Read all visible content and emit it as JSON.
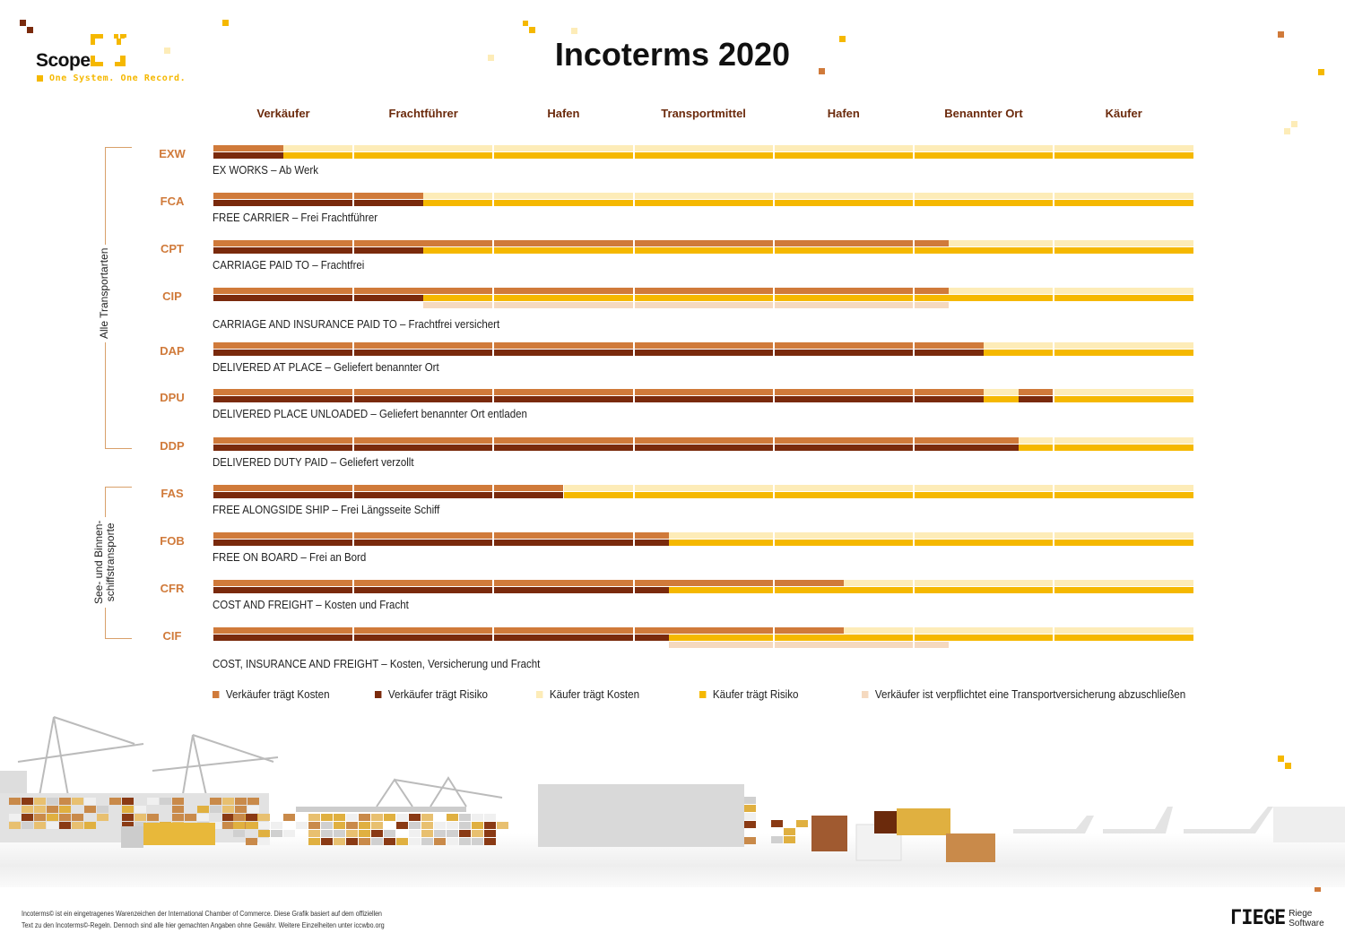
{
  "brand": {
    "name": "Scope",
    "tagline": "One System. One Record."
  },
  "title": "Incoterms 2020",
  "columns": [
    "Verkäufer",
    "Frachtführer",
    "Hafen",
    "Transportmittel",
    "Hafen",
    "Benannter Ort",
    "Käufer"
  ],
  "groups": [
    {
      "label": "Alle Transportarten"
    },
    {
      "label": "See- und Binnen-\nschiffstransporte"
    }
  ],
  "colors": {
    "seller_cost": "#d07a3a",
    "seller_risk": "#7a2a0c",
    "buyer_cost": "#fdecb8",
    "buyer_risk": "#f5b800",
    "insurance": "#f5d9bf"
  },
  "rows": [
    {
      "code": "EXW",
      "label": "EX WORKS – Ab Werk",
      "seller_cost_until": 0.5,
      "seller_risk_until": 0.5
    },
    {
      "code": "FCA",
      "label": "FREE CARRIER – Frei Frachtführer",
      "seller_cost_until": 1.5,
      "seller_risk_until": 1.5
    },
    {
      "code": "CPT",
      "label": "CARRIAGE PAID TO – Frachtfrei",
      "seller_cost_until": 5.25,
      "seller_risk_until": 1.5
    },
    {
      "code": "CIP",
      "label": "CARRIAGE AND INSURANCE PAID TO – Frachtfrei versichert",
      "seller_cost_until": 5.25,
      "seller_risk_until": 1.5,
      "insurance": [
        1.5,
        5.25
      ]
    },
    {
      "code": "DAP",
      "label": "DELIVERED AT PLACE – Geliefert benannter Ort",
      "seller_cost_until": 5.5,
      "seller_risk_until": 5.5
    },
    {
      "code": "DPU",
      "label": "DELIVERED PLACE UNLOADED – Geliefert benannter Ort entladen",
      "seller_cost_until": 5.5,
      "seller_risk_until": 5.5,
      "seller_extra": [
        5.75,
        6
      ]
    },
    {
      "code": "DDP",
      "label": "DELIVERED DUTY PAID – Geliefert verzollt",
      "seller_cost_until": 5.75,
      "seller_risk_until": 5.75
    },
    {
      "code": "FAS",
      "label": "FREE ALONGSIDE SHIP – Frei Längsseite Schiff",
      "seller_cost_until": 2.5,
      "seller_risk_until": 2.5
    },
    {
      "code": "FOB",
      "label": "FREE ON BOARD – Frei an Bord",
      "seller_cost_until": 3.25,
      "seller_risk_until": 3.25
    },
    {
      "code": "CFR",
      "label": "COST AND FREIGHT – Kosten und Fracht",
      "seller_cost_until": 4.5,
      "seller_risk_until": 3.25
    },
    {
      "code": "CIF",
      "label": "COST, INSURANCE AND FREIGHT – Kosten, Versicherung und Fracht",
      "seller_cost_until": 4.5,
      "seller_risk_until": 3.25,
      "insurance": [
        3.25,
        5.25
      ]
    }
  ],
  "legend": [
    {
      "label": "Verkäufer trägt Kosten",
      "color": "#d07a3a"
    },
    {
      "label": "Verkäufer trägt Risiko",
      "color": "#7a2a0c"
    },
    {
      "label": "Käufer trägt Kosten",
      "color": "#fdecb8"
    },
    {
      "label": "Käufer trägt Risiko",
      "color": "#f5b800"
    },
    {
      "label": "Verkäufer ist verpflichtet eine Transportversicherung abzuschließen",
      "color": "#f5d9bf"
    }
  ],
  "footer": {
    "line1": "Incoterms© ist ein eingetragenes Warenzeichen der International Chamber of Commerce. Diese Grafik basiert auf dem offiziellen",
    "line2": "Text zu den Incoterms©-Regeln. Dennoch sind alle hier gemachten Angaben ohne Gewähr. Weitere Einzelheiten unter iccwbo.org"
  },
  "riege": {
    "mark": "ΓIEGE",
    "line1": "Riege",
    "line2": "Software"
  }
}
